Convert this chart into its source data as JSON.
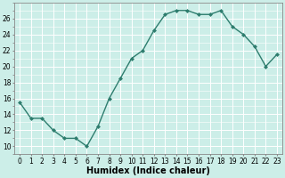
{
  "x": [
    0,
    1,
    2,
    3,
    4,
    5,
    6,
    7,
    8,
    9,
    10,
    11,
    12,
    13,
    14,
    15,
    16,
    17,
    18,
    19,
    20,
    21,
    22,
    23
  ],
  "y": [
    15.5,
    13.5,
    13.5,
    12.0,
    11.0,
    11.0,
    10.0,
    12.5,
    16.0,
    18.5,
    21.0,
    22.0,
    24.5,
    26.5,
    27.0,
    27.0,
    26.5,
    26.5,
    27.0,
    25.0,
    24.0,
    22.5,
    20.0,
    21.5
  ],
  "line_color": "#2e7d6e",
  "marker": "D",
  "marker_size": 2.0,
  "line_width": 1.0,
  "bg_color": "#cceee8",
  "grid_color": "#ffffff",
  "xlabel": "Humidex (Indice chaleur)",
  "xlabel_fontsize": 7,
  "xlim": [
    -0.5,
    23.5
  ],
  "ylim": [
    9,
    28
  ],
  "yticks": [
    10,
    12,
    14,
    16,
    18,
    20,
    22,
    24,
    26
  ],
  "xticks": [
    0,
    1,
    2,
    3,
    4,
    5,
    6,
    7,
    8,
    9,
    10,
    11,
    12,
    13,
    14,
    15,
    16,
    17,
    18,
    19,
    20,
    21,
    22,
    23
  ],
  "tick_fontsize": 5.5,
  "spine_color": "#888888"
}
